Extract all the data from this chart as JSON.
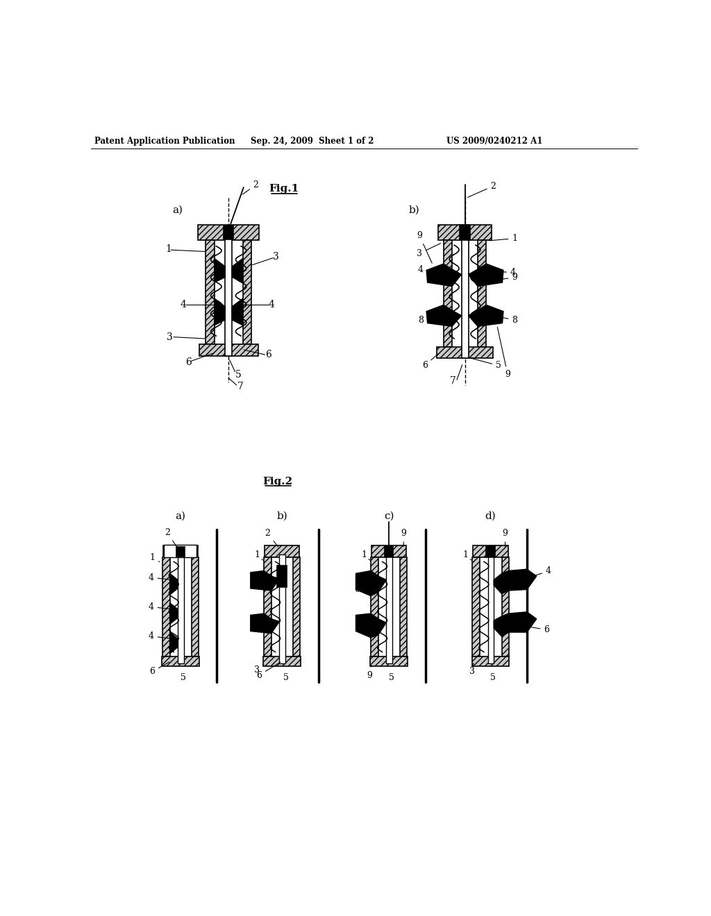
{
  "bg_color": "#ffffff",
  "header_left": "Patent Application Publication",
  "header_center": "Sep. 24, 2009  Sheet 1 of 2",
  "header_right": "US 2009/0240212 A1",
  "fig1_label": "Fig.1",
  "fig2_label": "Fig.2",
  "line_color": "#000000",
  "text_color": "#000000",
  "hatch_pattern": "////",
  "hatch_fc": "#c8c8c8"
}
